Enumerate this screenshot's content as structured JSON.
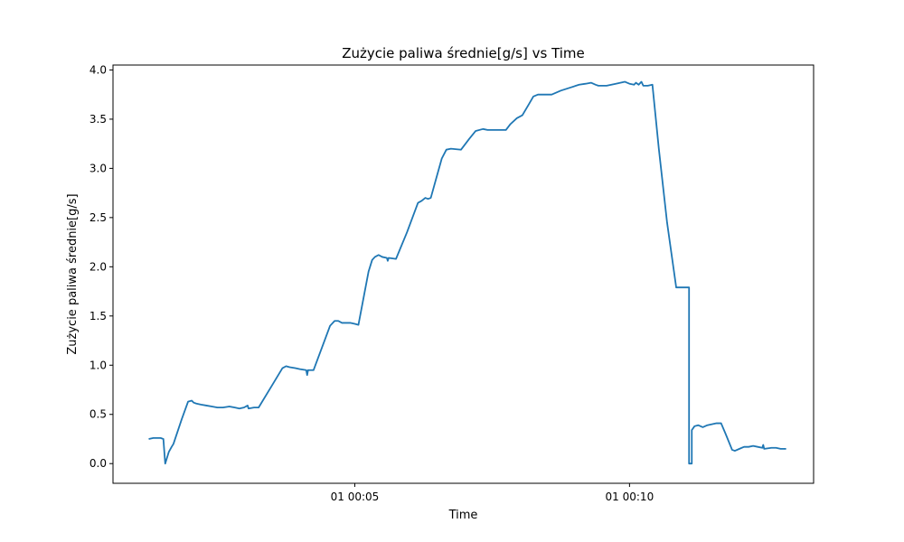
{
  "chart_data": {
    "type": "line",
    "title": "Zużycie paliwa średnie[g/s] vs Time",
    "xlabel": "Time",
    "ylabel": "Zużycie paliwa średnie[g/s]",
    "x_unit": "time mm:ss",
    "xlim": [
      "00:00:36",
      "00:13:21"
    ],
    "ylim": [
      -0.2,
      4.05
    ],
    "x_ticks": [
      {
        "t": "00:05:00",
        "label": "01 00:05"
      },
      {
        "t": "00:10:00",
        "label": "01 00:10"
      }
    ],
    "y_ticks": [
      {
        "value": 0.0,
        "label": "0.0"
      },
      {
        "value": 0.5,
        "label": "0.5"
      },
      {
        "value": 1.0,
        "label": "1.0"
      },
      {
        "value": 1.5,
        "label": "1.5"
      },
      {
        "value": 2.0,
        "label": "2.0"
      },
      {
        "value": 2.5,
        "label": "2.5"
      },
      {
        "value": 3.0,
        "label": "3.0"
      },
      {
        "value": 3.5,
        "label": "3.5"
      },
      {
        "value": 4.0,
        "label": "4.0"
      }
    ],
    "grid": false,
    "legend": "none",
    "series": [
      {
        "color": "#1f77b4",
        "points": [
          [
            "00:01:15",
            0.25
          ],
          [
            "00:01:20",
            0.26
          ],
          [
            "00:01:28",
            0.26
          ],
          [
            "00:01:31",
            0.25
          ],
          [
            "00:01:33",
            0.0
          ],
          [
            "00:01:37",
            0.12
          ],
          [
            "00:01:40",
            0.17
          ],
          [
            "00:01:42",
            0.2
          ],
          [
            "00:01:51",
            0.45
          ],
          [
            "00:01:58",
            0.63
          ],
          [
            "00:02:02",
            0.64
          ],
          [
            "00:02:04",
            0.62
          ],
          [
            "00:02:07",
            0.61
          ],
          [
            "00:02:12",
            0.6
          ],
          [
            "00:02:18",
            0.59
          ],
          [
            "00:02:24",
            0.58
          ],
          [
            "00:02:30",
            0.57
          ],
          [
            "00:02:36",
            0.57
          ],
          [
            "00:02:43",
            0.58
          ],
          [
            "00:02:49",
            0.57
          ],
          [
            "00:02:54",
            0.56
          ],
          [
            "00:02:59",
            0.57
          ],
          [
            "00:03:03",
            0.59
          ],
          [
            "00:03:04",
            0.56
          ],
          [
            "00:03:10",
            0.57
          ],
          [
            "00:03:15",
            0.57
          ],
          [
            "00:03:30",
            0.8
          ],
          [
            "00:03:41",
            0.97
          ],
          [
            "00:03:45",
            0.99
          ],
          [
            "00:03:49",
            0.98
          ],
          [
            "00:03:55",
            0.97
          ],
          [
            "00:04:00",
            0.96
          ],
          [
            "00:04:07",
            0.95
          ],
          [
            "00:04:08",
            0.9
          ],
          [
            "00:04:09",
            0.95
          ],
          [
            "00:04:15",
            0.95
          ],
          [
            "00:04:27",
            1.25
          ],
          [
            "00:04:33",
            1.4
          ],
          [
            "00:04:38",
            1.45
          ],
          [
            "00:04:42",
            1.45
          ],
          [
            "00:04:46",
            1.43
          ],
          [
            "00:04:55",
            1.43
          ],
          [
            "00:05:00",
            1.42
          ],
          [
            "00:05:04",
            1.41
          ],
          [
            "00:05:15",
            1.95
          ],
          [
            "00:05:19",
            2.07
          ],
          [
            "00:05:22",
            2.1
          ],
          [
            "00:05:26",
            2.12
          ],
          [
            "00:05:30",
            2.1
          ],
          [
            "00:05:35",
            2.09
          ],
          [
            "00:05:36",
            2.06
          ],
          [
            "00:05:37",
            2.09
          ],
          [
            "00:05:45",
            2.08
          ],
          [
            "00:05:57",
            2.35
          ],
          [
            "00:06:09",
            2.65
          ],
          [
            "00:06:13",
            2.67
          ],
          [
            "00:06:17",
            2.7
          ],
          [
            "00:06:20",
            2.69
          ],
          [
            "00:06:23",
            2.7
          ],
          [
            "00:06:29",
            2.9
          ],
          [
            "00:06:35",
            3.1
          ],
          [
            "00:06:40",
            3.19
          ],
          [
            "00:06:45",
            3.2
          ],
          [
            "00:06:56",
            3.19
          ],
          [
            "00:07:05",
            3.3
          ],
          [
            "00:07:12",
            3.38
          ],
          [
            "00:07:20",
            3.4
          ],
          [
            "00:07:25",
            3.39
          ],
          [
            "00:07:35",
            3.39
          ],
          [
            "00:07:45",
            3.39
          ],
          [
            "00:07:50",
            3.45
          ],
          [
            "00:07:57",
            3.51
          ],
          [
            "00:08:03",
            3.54
          ],
          [
            "00:08:10",
            3.65
          ],
          [
            "00:08:15",
            3.73
          ],
          [
            "00:08:20",
            3.75
          ],
          [
            "00:08:30",
            3.75
          ],
          [
            "00:08:35",
            3.75
          ],
          [
            "00:08:45",
            3.79
          ],
          [
            "00:08:55",
            3.82
          ],
          [
            "00:09:05",
            3.85
          ],
          [
            "00:09:12",
            3.86
          ],
          [
            "00:09:18",
            3.87
          ],
          [
            "00:09:23",
            3.85
          ],
          [
            "00:09:26",
            3.84
          ],
          [
            "00:09:35",
            3.84
          ],
          [
            "00:09:45",
            3.86
          ],
          [
            "00:09:55",
            3.88
          ],
          [
            "00:10:00",
            3.86
          ],
          [
            "00:10:05",
            3.85
          ],
          [
            "00:10:07",
            3.87
          ],
          [
            "00:10:10",
            3.85
          ],
          [
            "00:10:13",
            3.88
          ],
          [
            "00:10:15",
            3.84
          ],
          [
            "00:10:20",
            3.84
          ],
          [
            "00:10:25",
            3.85
          ],
          [
            "00:10:32",
            3.2
          ],
          [
            "00:10:41",
            2.45
          ],
          [
            "00:10:51",
            1.79
          ],
          [
            "00:11:05",
            1.79
          ],
          [
            "00:11:05",
            0.0
          ],
          [
            "00:11:07",
            0.0
          ],
          [
            "00:11:08",
            0.0
          ],
          [
            "00:11:08",
            0.34
          ],
          [
            "00:11:11",
            0.38
          ],
          [
            "00:11:15",
            0.39
          ],
          [
            "00:11:20",
            0.37
          ],
          [
            "00:11:25",
            0.39
          ],
          [
            "00:11:30",
            0.4
          ],
          [
            "00:11:35",
            0.41
          ],
          [
            "00:11:40",
            0.41
          ],
          [
            "00:11:45",
            0.3
          ],
          [
            "00:11:52",
            0.14
          ],
          [
            "00:11:55",
            0.13
          ],
          [
            "00:12:00",
            0.15
          ],
          [
            "00:12:05",
            0.17
          ],
          [
            "00:12:10",
            0.17
          ],
          [
            "00:12:15",
            0.18
          ],
          [
            "00:12:20",
            0.17
          ],
          [
            "00:12:25",
            0.16
          ],
          [
            "00:12:26",
            0.19
          ],
          [
            "00:12:27",
            0.15
          ],
          [
            "00:12:35",
            0.16
          ],
          [
            "00:12:40",
            0.16
          ],
          [
            "00:12:45",
            0.15
          ],
          [
            "00:12:51",
            0.15
          ]
        ]
      }
    ]
  }
}
